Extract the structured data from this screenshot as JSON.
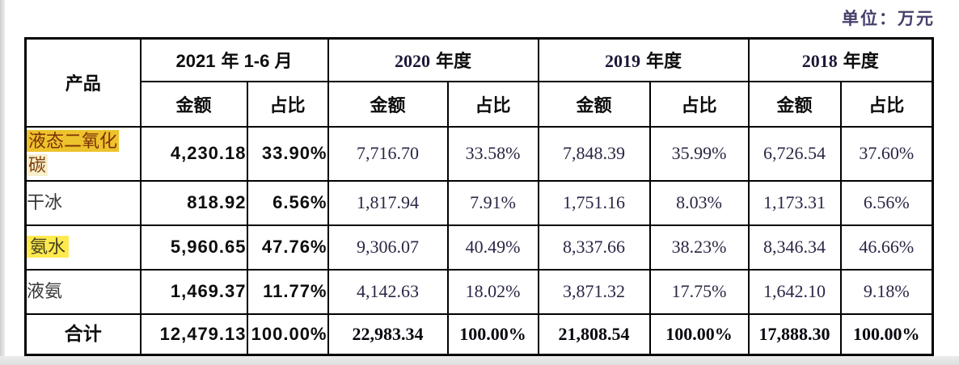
{
  "meta": {
    "unit_label": "单位：万元"
  },
  "table": {
    "product_header": "产品",
    "amount_label": "金额",
    "ratio_label": "占比",
    "periods": [
      {
        "num": "2021",
        "suffix": "年 1-6 月"
      },
      {
        "num": "2020",
        "suffix": "年度"
      },
      {
        "num": "2019",
        "suffix": "年度"
      },
      {
        "num": "2018",
        "suffix": "年度"
      }
    ],
    "rows": [
      {
        "label_line1": "液态二氧化",
        "label_line2": "碳",
        "highlight": true,
        "cells": [
          "4,230.18",
          "33.90%",
          "7,716.70",
          "33.58%",
          "7,848.39",
          "35.99%",
          "6,726.54",
          "37.60%"
        ]
      },
      {
        "label": "干冰",
        "highlight": false,
        "cells": [
          "818.92",
          "6.56%",
          "1,817.94",
          "7.91%",
          "1,751.16",
          "8.03%",
          "1,173.31",
          "6.56%"
        ]
      },
      {
        "label": "氨水",
        "highlight": true,
        "cells": [
          "5,960.65",
          "47.76%",
          "9,306.07",
          "40.49%",
          "8,337.66",
          "38.23%",
          "8,346.34",
          "46.66%"
        ]
      },
      {
        "label": "液氨",
        "highlight": false,
        "cells": [
          "1,469.37",
          "11.77%",
          "4,142.63",
          "18.02%",
          "3,871.32",
          "17.75%",
          "1,642.10",
          "9.18%"
        ]
      },
      {
        "label": "合计",
        "highlight": false,
        "is_total": true,
        "cells": [
          "12,479.13",
          "100.00%",
          "22,983.34",
          "100.00%",
          "21,808.54",
          "100.00%",
          "17,888.30",
          "100.00%"
        ]
      }
    ],
    "highlight_colors": {
      "gold": "#edc32d",
      "lemon": "#ffe94f"
    }
  }
}
